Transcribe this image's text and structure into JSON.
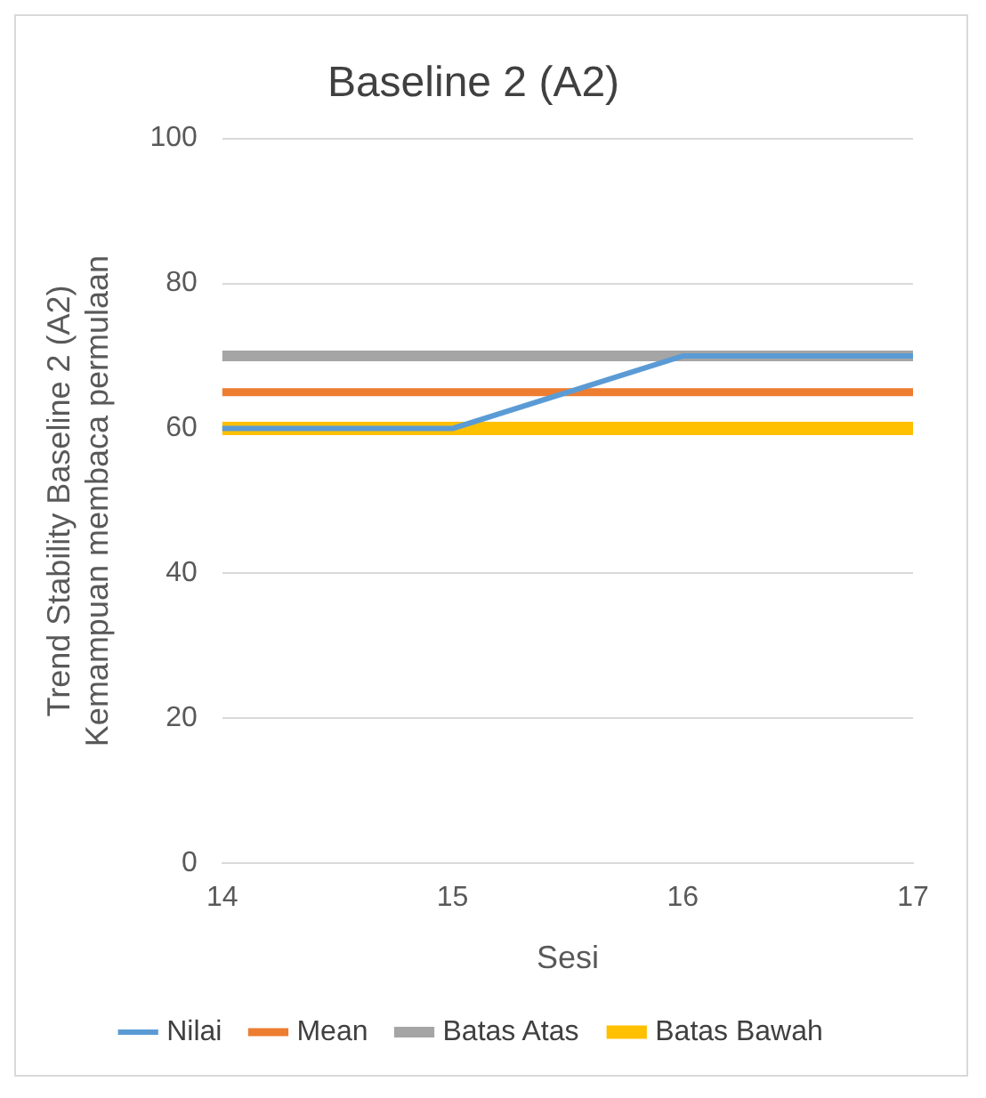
{
  "chart_data": {
    "type": "line",
    "title": "Baseline 2 (A2)",
    "xlabel": "Sesi",
    "ylabel": "Trend Stability Baseline 2 (A2) Kemampuan membaca permulaan",
    "categories": [
      "14",
      "15",
      "16",
      "17"
    ],
    "series": [
      {
        "name": "Nilai",
        "color": "#5b9bd5",
        "values": [
          60,
          60,
          70,
          70
        ]
      },
      {
        "name": "Mean",
        "color": "#ed7d31",
        "values": [
          65,
          65,
          65,
          65
        ]
      },
      {
        "name": "Batas Atas",
        "color": "#a5a5a5",
        "values": [
          70,
          70,
          70,
          70
        ]
      },
      {
        "name": "Batas Bawah",
        "color": "#ffc000",
        "values": [
          60,
          60,
          60,
          60
        ]
      }
    ],
    "ylim": [
      0,
      100
    ],
    "yticks": [
      0,
      20,
      40,
      60,
      80,
      100
    ],
    "grid": "y",
    "legend": "bottom",
    "marker": "none",
    "line_style": "solid"
  }
}
